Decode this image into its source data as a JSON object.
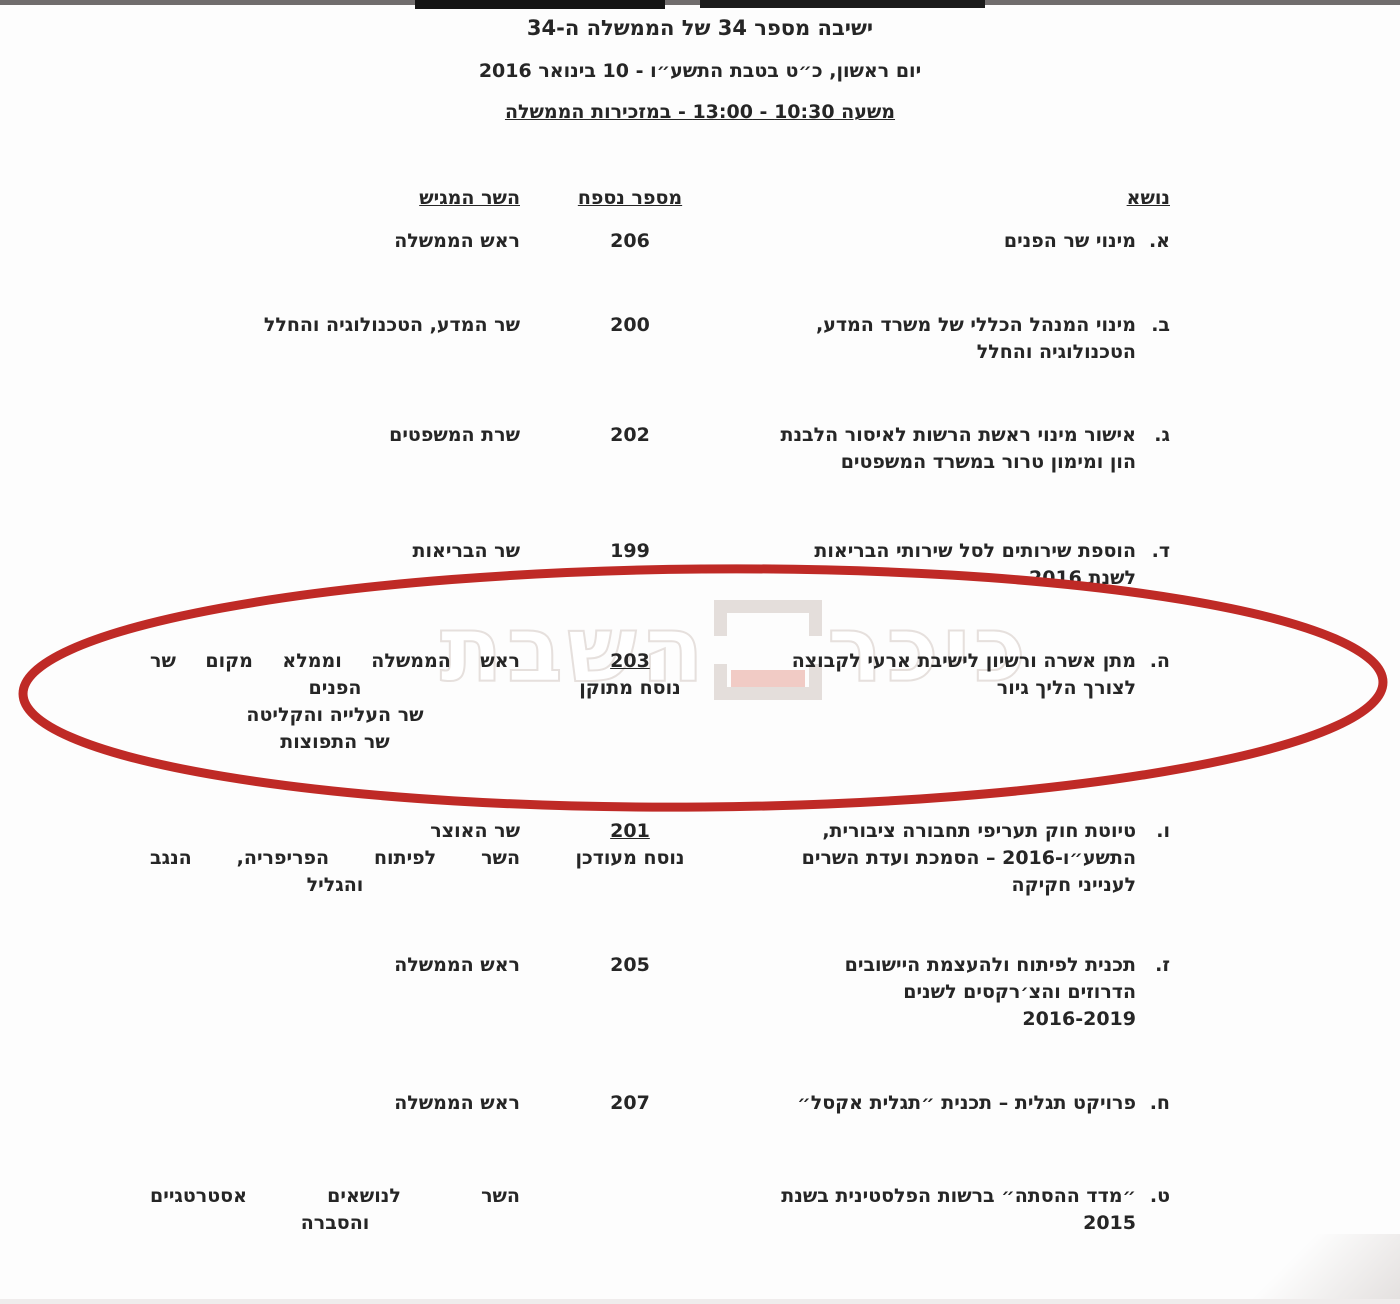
{
  "page": {
    "title_line1": "ישיבה מספר 34 של הממשלה ה-34",
    "title_line2": "יום ראשון, כ״ט בטבת התשע״ו - 10 בינואר 2016",
    "title_line3": "משעה 10:30 - 13:00 - במזכירות הממשלה"
  },
  "watermark": {
    "text_right": "כיכר",
    "text_left": "השבת"
  },
  "table": {
    "headers": {
      "topic": "נושא",
      "appendix": "מספר נספח",
      "minister": "השר המגיש"
    },
    "rows": [
      {
        "letter": "א.",
        "topic_lines": [
          "מינוי שר הפנים"
        ],
        "appendix": {
          "number": "206",
          "underlined": false,
          "note": ""
        },
        "minister_lines": [
          {
            "text": "ראש הממשלה",
            "align": "right"
          }
        ]
      },
      {
        "letter": "ב.",
        "topic_lines": [
          "מינוי המנהל הכללי של משרד המדע,",
          "הטכנולוגיה והחלל"
        ],
        "appendix": {
          "number": "200",
          "underlined": false,
          "note": ""
        },
        "minister_lines": [
          {
            "text": "שר המדע, הטכנולוגיה והחלל",
            "align": "right"
          }
        ]
      },
      {
        "letter": "ג.",
        "topic_lines": [
          "אישור מינוי ראשת הרשות לאיסור הלבנת",
          "הון ומימון טרור במשרד המשפטים"
        ],
        "appendix": {
          "number": "202",
          "underlined": false,
          "note": ""
        },
        "minister_lines": [
          {
            "text": "שרת המשפטים",
            "align": "right"
          }
        ]
      },
      {
        "letter": "ד.",
        "topic_lines": [
          "הוספת שירותים לסל שירותי הבריאות",
          "לשנת 2016"
        ],
        "appendix": {
          "number": "199",
          "underlined": false,
          "note": ""
        },
        "minister_lines": [
          {
            "text": "שר הבריאות",
            "align": "right"
          }
        ]
      },
      {
        "letter": "ה.",
        "topic_lines": [
          "מתן אשרה ורשיון לישיבת ארעי לקבוצה",
          "לצורך הליך גיור"
        ],
        "appendix": {
          "number": "203",
          "underlined": true,
          "note": "נוסח מתוקן"
        },
        "minister_lines": [
          {
            "text": "ראש הממשלה וממלא מקום שר",
            "align": "spread"
          },
          {
            "text": "הפנים",
            "align": "center"
          },
          {
            "text": "שר העלייה והקליטה",
            "align": "center"
          },
          {
            "text": "שר התפוצות",
            "align": "center"
          }
        ]
      },
      {
        "letter": "ו.",
        "topic_lines": [
          "טיוטת חוק תעריפי תחבורה ציבורית,",
          "התשע״ו-2016 – הסמכת ועדת השרים",
          "לענייני חקיקה"
        ],
        "appendix": {
          "number": "201",
          "underlined": true,
          "note": "נוסח מעודכן"
        },
        "minister_lines": [
          {
            "text": "שר האוצר",
            "align": "right"
          },
          {
            "text": "השר לפיתוח הפריפריה, הנגב",
            "align": "spread"
          },
          {
            "text": "והגליל",
            "align": "center"
          }
        ]
      },
      {
        "letter": "ז.",
        "topic_lines": [
          "תכנית לפיתוח ולהעצמת היישובים",
          "הדרוזים והצ׳רקסים לשנים",
          "2016-2019"
        ],
        "appendix": {
          "number": "205",
          "underlined": false,
          "note": ""
        },
        "minister_lines": [
          {
            "text": "ראש הממשלה",
            "align": "right"
          }
        ]
      },
      {
        "letter": "ח.",
        "topic_lines": [
          "פרויקט תגלית – תכנית ״תגלית אקסל״"
        ],
        "appendix": {
          "number": "207",
          "underlined": false,
          "note": ""
        },
        "minister_lines": [
          {
            "text": "ראש הממשלה",
            "align": "right"
          }
        ]
      },
      {
        "letter": "ט.",
        "topic_lines": [
          "״מדד ההסתה״ ברשות הפלסטינית בשנת",
          "2015"
        ],
        "appendix": null,
        "minister_lines": [
          {
            "text": "השר לנושאים אסטרטגיים",
            "align": "spread"
          },
          {
            "text": "והסברה",
            "align": "center"
          }
        ]
      }
    ]
  },
  "annotation": {
    "ellipse_color": "#bf2a26"
  }
}
